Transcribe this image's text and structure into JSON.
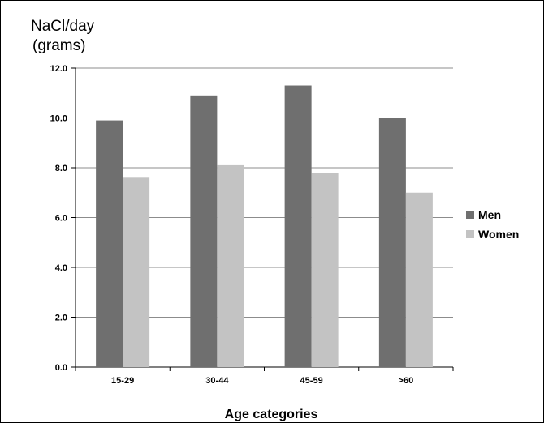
{
  "chart_data": {
    "type": "bar",
    "ylabel_lines": [
      "NaCl/day",
      "(grams)"
    ],
    "xlabel": "Age categories",
    "categories": [
      "15-29",
      "30-44",
      "45-59",
      ">60"
    ],
    "yticks": [
      "0.0",
      "2.0",
      "4.0",
      "6.0",
      "8.0",
      "10.0",
      "12.0"
    ],
    "ylim": [
      0,
      12
    ],
    "grid": true,
    "legend_position": "right",
    "series": [
      {
        "name": "Men",
        "color": "#6f6f6f",
        "values": [
          9.9,
          10.9,
          11.3,
          10.0
        ]
      },
      {
        "name": "Women",
        "color": "#c3c3c3",
        "values": [
          7.6,
          8.1,
          7.8,
          7.0
        ]
      }
    ]
  }
}
